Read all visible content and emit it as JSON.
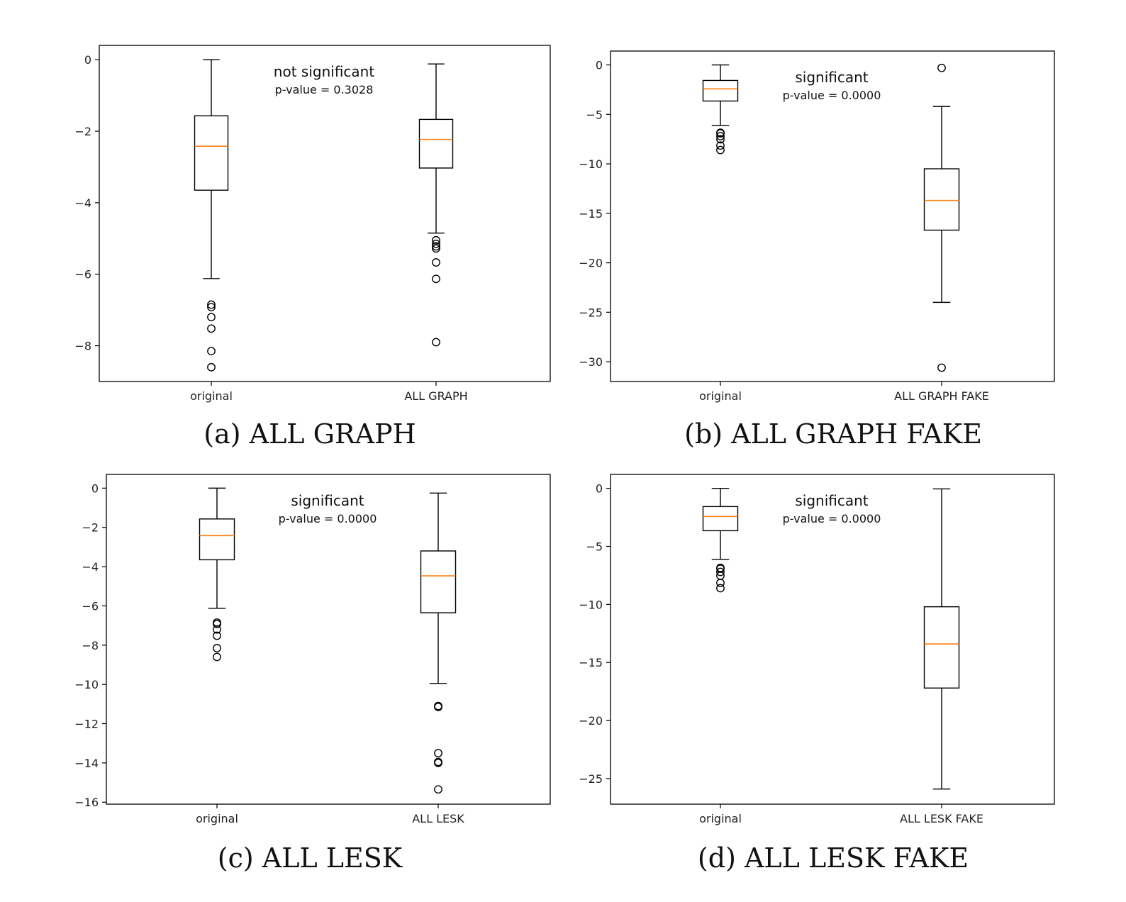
{
  "chart_data": [
    {
      "type": "box",
      "caption": "(a) ALL GRAPH",
      "categories": [
        "original",
        "ALL GRAPH"
      ],
      "ylim": [
        -9,
        0.4
      ],
      "yticks": [
        0,
        -2,
        -4,
        -6,
        -8
      ],
      "annotation": {
        "line1": "not significant",
        "line2": "p-value = 0.3028"
      },
      "boxes": [
        {
          "whisker_high": 0,
          "q3": -1.57,
          "median": -2.42,
          "q1": -3.65,
          "whisker_low": -6.12,
          "outliers": [
            -6.85,
            -6.92,
            -7.2,
            -7.52,
            -8.15,
            -8.6
          ]
        },
        {
          "whisker_high": -0.12,
          "q3": -1.67,
          "median": -2.23,
          "q1": -3.03,
          "whisker_low": -4.85,
          "outliers": [
            -5.05,
            -5.15,
            -5.22,
            -5.28,
            -5.67,
            -6.13,
            -7.9
          ]
        }
      ]
    },
    {
      "type": "box",
      "caption": "(b) ALL GRAPH FAKE",
      "categories": [
        "original",
        "ALL GRAPH FAKE"
      ],
      "ylim": [
        -32,
        1.4
      ],
      "yticks": [
        0,
        -5,
        -10,
        -15,
        -20,
        -25,
        -30
      ],
      "annotation": {
        "line1": "significant",
        "line2": "p-value = 0.0000"
      },
      "boxes": [
        {
          "whisker_high": 0,
          "q3": -1.57,
          "median": -2.42,
          "q1": -3.65,
          "whisker_low": -6.12,
          "outliers": [
            -6.85,
            -6.92,
            -7.2,
            -7.52,
            -8.15,
            -8.6
          ]
        },
        {
          "whisker_high": -4.2,
          "q3": -10.5,
          "median": -13.7,
          "q1": -16.7,
          "whisker_low": -24.0,
          "outliers": [
            -0.3,
            -30.6
          ]
        }
      ]
    },
    {
      "type": "box",
      "caption": "(c) ALL LESK",
      "categories": [
        "original",
        "ALL LESK"
      ],
      "ylim": [
        -16.1,
        0.7
      ],
      "yticks": [
        0,
        -2,
        -4,
        -6,
        -8,
        -10,
        -12,
        -14,
        -16
      ],
      "annotation": {
        "line1": "significant",
        "line2": "p-value = 0.0000"
      },
      "boxes": [
        {
          "whisker_high": 0,
          "q3": -1.57,
          "median": -2.42,
          "q1": -3.65,
          "whisker_low": -6.12,
          "outliers": [
            -6.85,
            -6.92,
            -7.2,
            -7.52,
            -8.15,
            -8.6
          ]
        },
        {
          "whisker_high": -0.25,
          "q3": -3.2,
          "median": -4.47,
          "q1": -6.35,
          "whisker_low": -9.95,
          "outliers": [
            -11.1,
            -11.15,
            -13.5,
            -13.95,
            -14.0,
            -15.35
          ]
        }
      ]
    },
    {
      "type": "box",
      "caption": "(d) ALL LESK FAKE",
      "categories": [
        "original",
        "ALL LESK FAKE"
      ],
      "ylim": [
        -27.2,
        1.2
      ],
      "yticks": [
        0,
        -5,
        -10,
        -15,
        -20,
        -25
      ],
      "annotation": {
        "line1": "significant",
        "line2": "p-value = 0.0000"
      },
      "boxes": [
        {
          "whisker_high": 0,
          "q3": -1.57,
          "median": -2.42,
          "q1": -3.65,
          "whisker_low": -6.12,
          "outliers": [
            -6.85,
            -6.92,
            -7.2,
            -7.52,
            -8.15,
            -8.6
          ]
        },
        {
          "whisker_high": -0.05,
          "q3": -10.2,
          "median": -13.4,
          "q1": -17.2,
          "whisker_low": -25.9,
          "outliers": []
        }
      ]
    }
  ],
  "colors": {
    "median": "#ff7f0e",
    "stroke": "#000000"
  }
}
